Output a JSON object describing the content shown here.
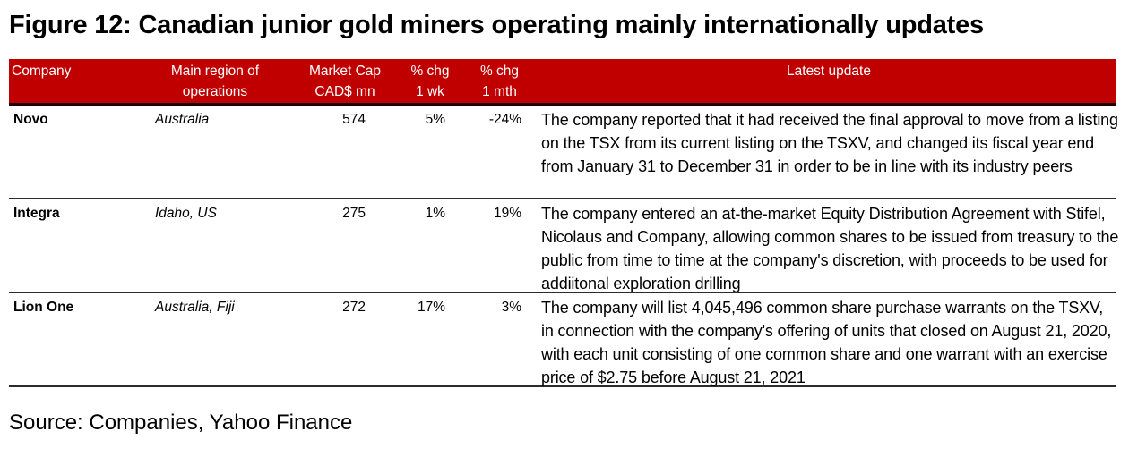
{
  "figure": {
    "title": "Figure 12: Canadian junior gold miners operating mainly internationally updates",
    "source": "Source: Companies, Yahoo Finance",
    "header_color": "#c00000"
  },
  "table": {
    "headers": {
      "company": "Company",
      "region_line1": "Main region of",
      "region_line2": "operations",
      "mcap_line1": "Market Cap",
      "mcap_line2": "CAD$ mn",
      "wk_line1": "% chg",
      "wk_line2": "1 wk",
      "mth_line1": "% chg",
      "mth_line2": "1 mth",
      "update": "Latest update"
    },
    "rows": [
      {
        "company": "Novo",
        "region": "Australia",
        "market_cap": "574",
        "chg_1wk": "5%",
        "chg_1mth": "-24%",
        "update": "The company reported that it had received the final approval to move from a listing on the TSX from its current listing on the TSXV, and changed its fiscal year end from January 31 to December 31 in order to be in line with its industry peers"
      },
      {
        "company": "Integra",
        "region": "Idaho, US",
        "market_cap": "275",
        "chg_1wk": "1%",
        "chg_1mth": "19%",
        "update": "The company entered an at-the-market Equity Distribution Agreement with Stifel, Nicolaus and Company, allowing common shares to be issued from treasury to the public from time to time at the company's discretion, with proceeds to be used for addiitonal exploration drilling"
      },
      {
        "company": "Lion One",
        "region": "Australia, Fiji",
        "market_cap": "272",
        "chg_1wk": "17%",
        "chg_1mth": "3%",
        "update": "The company will list 4,045,496 common share purchase warrants on the TSXV, in connection with the company's offering of units that closed on August 21, 2020, with each unit consisting of one common share and one warrant with an exercise price of $2.75 before August 21, 2021"
      }
    ]
  }
}
